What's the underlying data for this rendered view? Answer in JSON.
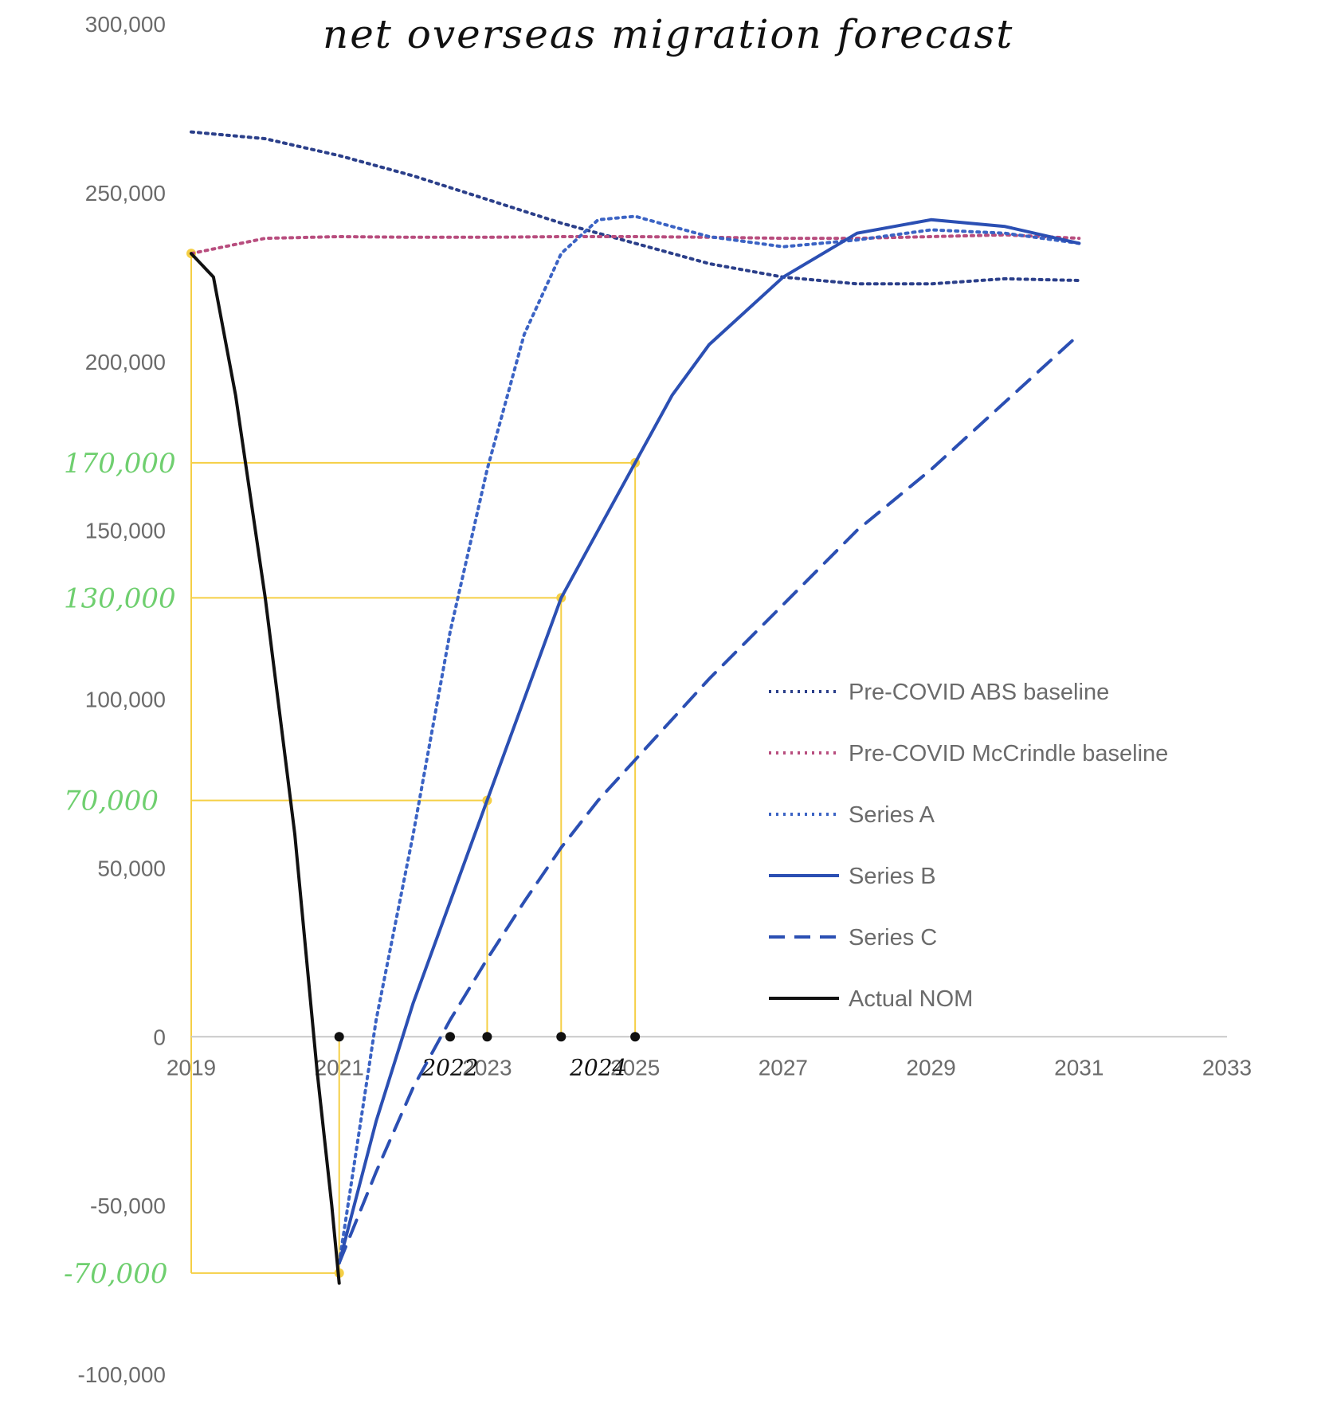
{
  "chart_data": {
    "type": "line",
    "title": "net overseas migration forecast",
    "xlabel": "",
    "ylabel": "",
    "xlim": [
      2019,
      2033
    ],
    "ylim": [
      -100000,
      300000
    ],
    "x_ticks": [
      "2019",
      "2021",
      "2023",
      "2025",
      "2027",
      "2029",
      "2031",
      "2033"
    ],
    "y_ticks": [
      "-100,000",
      "-50,000",
      "0",
      "50,000",
      "100,000",
      "150,000",
      "200,000",
      "250,000",
      "300,000"
    ],
    "grid": false,
    "legend_position": "right",
    "series": [
      {
        "name": "Pre-COVID ABS baseline",
        "style": "dotted",
        "color": "#2b3f8a",
        "points": [
          [
            2019.0,
            268000
          ],
          [
            2020.0,
            266000
          ],
          [
            2021.0,
            261000
          ],
          [
            2022.0,
            255000
          ],
          [
            2023.0,
            248000
          ],
          [
            2024.0,
            241000
          ],
          [
            2025.0,
            235000
          ],
          [
            2026.0,
            229000
          ],
          [
            2027.0,
            225000
          ],
          [
            2028.0,
            223000
          ],
          [
            2029.0,
            223000
          ],
          [
            2030.0,
            224500
          ],
          [
            2031.0,
            224000
          ]
        ]
      },
      {
        "name": "Pre-COVID McCrindle baseline",
        "style": "dotted",
        "color": "#b84d7e",
        "points": [
          [
            2019.0,
            232000
          ],
          [
            2020.0,
            236500
          ],
          [
            2021.0,
            237000
          ],
          [
            2022.0,
            236800
          ],
          [
            2023.0,
            236800
          ],
          [
            2024.0,
            237000
          ],
          [
            2025.0,
            237000
          ],
          [
            2026.0,
            236800
          ],
          [
            2027.0,
            236500
          ],
          [
            2028.0,
            236500
          ],
          [
            2029.0,
            237000
          ],
          [
            2030.0,
            237500
          ],
          [
            2031.0,
            236500
          ]
        ]
      },
      {
        "name": "Series A",
        "style": "dotted",
        "color": "#3b63c4",
        "points": [
          [
            2021.0,
            -67000
          ],
          [
            2021.5,
            5000
          ],
          [
            2022.0,
            60000
          ],
          [
            2022.5,
            120000
          ],
          [
            2023.0,
            168000
          ],
          [
            2023.5,
            208000
          ],
          [
            2024.0,
            232000
          ],
          [
            2024.5,
            242000
          ],
          [
            2025.0,
            243000
          ],
          [
            2025.5,
            240000
          ],
          [
            2026.0,
            237000
          ],
          [
            2027.0,
            234000
          ],
          [
            2028.0,
            236000
          ],
          [
            2029.0,
            239000
          ],
          [
            2030.0,
            238000
          ],
          [
            2031.0,
            235000
          ]
        ]
      },
      {
        "name": "Series B",
        "style": "solid",
        "color": "#2b4fb3",
        "points": [
          [
            2021.0,
            -67000
          ],
          [
            2021.5,
            -25000
          ],
          [
            2022.0,
            10000
          ],
          [
            2022.5,
            40000
          ],
          [
            2023.0,
            70000
          ],
          [
            2023.5,
            100000
          ],
          [
            2024.0,
            130000
          ],
          [
            2024.5,
            150000
          ],
          [
            2025.0,
            170000
          ],
          [
            2025.5,
            190000
          ],
          [
            2026.0,
            205000
          ],
          [
            2027.0,
            225000
          ],
          [
            2028.0,
            238000
          ],
          [
            2029.0,
            242000
          ],
          [
            2030.0,
            240000
          ],
          [
            2031.0,
            235000
          ]
        ]
      },
      {
        "name": "Series C",
        "style": "dashed",
        "color": "#2b4fb3",
        "points": [
          [
            2021.0,
            -67000
          ],
          [
            2021.5,
            -40000
          ],
          [
            2022.0,
            -15000
          ],
          [
            2022.5,
            5000
          ],
          [
            2023.0,
            23000
          ],
          [
            2023.5,
            40000
          ],
          [
            2024.0,
            56000
          ],
          [
            2024.5,
            70000
          ],
          [
            2025.0,
            82000
          ],
          [
            2026.0,
            106000
          ],
          [
            2027.0,
            128000
          ],
          [
            2028.0,
            150000
          ],
          [
            2029.0,
            168000
          ],
          [
            2030.0,
            188000
          ],
          [
            2031.0,
            208000
          ]
        ]
      },
      {
        "name": "Actual NOM",
        "style": "solid",
        "color": "#111111",
        "points": [
          [
            2019.0,
            232000
          ],
          [
            2019.3,
            225000
          ],
          [
            2019.6,
            190000
          ],
          [
            2020.0,
            130000
          ],
          [
            2020.4,
            60000
          ],
          [
            2020.7,
            -10000
          ],
          [
            2020.9,
            -50000
          ],
          [
            2021.0,
            -73000
          ]
        ]
      }
    ],
    "annotations": {
      "reference_color": "#f5cf45",
      "y_labels": [
        {
          "text": "170,000",
          "value": 170000
        },
        {
          "text": "130,000",
          "value": 130000
        },
        {
          "text": "70,000",
          "value": 70000
        },
        {
          "text": "-70,000",
          "value": -70000
        }
      ],
      "x_labels": [
        {
          "text": "2022",
          "value": 2022.5
        },
        {
          "text": "2024",
          "value": 2024.5
        }
      ],
      "guides": [
        {
          "x": 2019.0,
          "y": 232000
        },
        {
          "x": 2021.0,
          "y": -70000
        },
        {
          "x": 2023.0,
          "y": 70000
        },
        {
          "x": 2024.0,
          "y": 130000
        },
        {
          "x": 2025.0,
          "y": 170000
        }
      ],
      "zero_dots": [
        2021.0,
        2022.5,
        2023.0,
        2024.0,
        2025.0
      ]
    }
  }
}
